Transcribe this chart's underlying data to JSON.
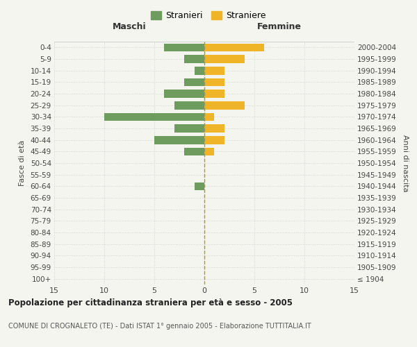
{
  "age_groups": [
    "100+",
    "95-99",
    "90-94",
    "85-89",
    "80-84",
    "75-79",
    "70-74",
    "65-69",
    "60-64",
    "55-59",
    "50-54",
    "45-49",
    "40-44",
    "35-39",
    "30-34",
    "25-29",
    "20-24",
    "15-19",
    "10-14",
    "5-9",
    "0-4"
  ],
  "birth_years": [
    "≤ 1904",
    "1905-1909",
    "1910-1914",
    "1915-1919",
    "1920-1924",
    "1925-1929",
    "1930-1934",
    "1935-1939",
    "1940-1944",
    "1945-1949",
    "1950-1954",
    "1955-1959",
    "1960-1964",
    "1965-1969",
    "1970-1974",
    "1975-1979",
    "1980-1984",
    "1985-1989",
    "1990-1994",
    "1995-1999",
    "2000-2004"
  ],
  "males": [
    0,
    0,
    0,
    0,
    0,
    0,
    0,
    0,
    1,
    0,
    0,
    2,
    5,
    3,
    10,
    3,
    4,
    2,
    1,
    2,
    4
  ],
  "females": [
    0,
    0,
    0,
    0,
    0,
    0,
    0,
    0,
    0,
    0,
    0,
    1,
    2,
    2,
    1,
    4,
    2,
    2,
    2,
    4,
    6
  ],
  "male_color": "#6e9b5e",
  "female_color": "#f0b429",
  "center_line_color": "#999966",
  "bg_color": "#f5f5f0",
  "grid_color": "#cccccc",
  "title": "Popolazione per cittadinanza straniera per età e sesso - 2005",
  "subtitle": "COMUNE DI CROGNALETO (TE) - Dati ISTAT 1° gennaio 2005 - Elaborazione TUTTITALIA.IT",
  "xlabel_left": "Maschi",
  "xlabel_right": "Femmine",
  "ylabel_left": "Fasce di età",
  "ylabel_right": "Anni di nascita",
  "legend_male": "Stranieri",
  "legend_female": "Straniere",
  "xlim": 15
}
